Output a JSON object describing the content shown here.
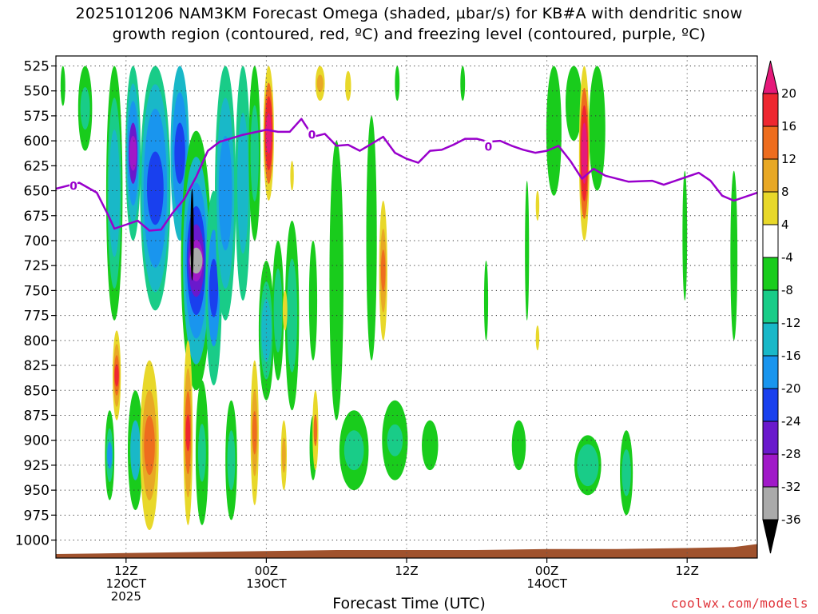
{
  "title_line1": "2025101206 NAM3KM Forecast Omega (shaded, µbar/s) for KB#A with dendritic snow",
  "title_line2": "growth region (contoured, red, ºC) and freezing level (contoured, purple, ºC)",
  "x_axis_title": "Forecast Time (UTC)",
  "credit": "coolwx.com/models",
  "chart_data": {
    "type": "heatmap",
    "title": "2025101206 NAM3KM Forecast Omega (shaded, µbar/s) for KB#A with dendritic snow growth region (contoured, red, ºC) and freezing level (contoured, purple, ºC)",
    "xlabel": "Forecast Time (UTC)",
    "ylabel": "",
    "y_ticks": [
      525,
      550,
      575,
      600,
      625,
      650,
      675,
      700,
      725,
      750,
      775,
      800,
      825,
      850,
      875,
      900,
      925,
      950,
      975,
      1000
    ],
    "y_inverted": true,
    "xlim_hours": [
      6,
      66
    ],
    "x_ticks": [
      {
        "hour": 12,
        "labels": [
          "12Z",
          "12OCT",
          "2025"
        ]
      },
      {
        "hour": 24,
        "labels": [
          "00Z",
          "13OCT"
        ]
      },
      {
        "hour": 36,
        "labels": [
          "12Z"
        ]
      },
      {
        "hour": 48,
        "labels": [
          "00Z",
          "14OCT"
        ]
      },
      {
        "hour": 60,
        "labels": [
          "12Z"
        ]
      }
    ],
    "grid": true,
    "colorbar": {
      "labels": [
        "20",
        "16",
        "12",
        "8",
        "4",
        "-4",
        "-8",
        "-12",
        "-16",
        "-20",
        "-24",
        "-28",
        "-32",
        "-36"
      ],
      "colors": [
        "#e5197a",
        "#ee2730",
        "#ee6d1e",
        "#e8a825",
        "#e8d82a",
        "#ffffff",
        "#19cc1c",
        "#19cc88",
        "#19b8c8",
        "#1995ee",
        "#1940ee",
        "#6a19cc",
        "#a019c8",
        "#aaaaaa",
        "#000000"
      ]
    },
    "freezing_level": {
      "color": "#9900cc",
      "contour_label": "0",
      "points": [
        [
          6,
          648
        ],
        [
          8,
          642
        ],
        [
          9.5,
          652
        ],
        [
          10.5,
          675
        ],
        [
          11,
          688
        ],
        [
          12,
          684
        ],
        [
          13,
          680
        ],
        [
          14,
          690
        ],
        [
          15,
          689
        ],
        [
          16,
          672
        ],
        [
          17,
          658
        ],
        [
          18,
          636
        ],
        [
          19,
          610
        ],
        [
          20,
          601
        ],
        [
          22,
          594
        ],
        [
          24,
          589
        ],
        [
          25,
          591
        ],
        [
          26,
          591
        ],
        [
          27,
          578
        ],
        [
          28,
          596
        ],
        [
          29,
          593
        ],
        [
          30,
          605
        ],
        [
          31,
          604
        ],
        [
          32,
          610
        ],
        [
          33,
          603
        ],
        [
          34,
          596
        ],
        [
          35,
          612
        ],
        [
          36,
          618
        ],
        [
          37,
          622
        ],
        [
          38,
          610
        ],
        [
          39,
          609
        ],
        [
          40,
          604
        ],
        [
          41,
          598
        ],
        [
          42,
          598
        ],
        [
          43,
          601
        ],
        [
          44,
          600
        ],
        [
          45,
          605
        ],
        [
          46,
          609
        ],
        [
          47,
          612
        ],
        [
          48,
          610
        ],
        [
          49,
          605
        ],
        [
          50,
          620
        ],
        [
          51,
          638
        ],
        [
          52,
          628
        ],
        [
          53,
          635
        ],
        [
          55,
          641
        ],
        [
          57,
          640
        ],
        [
          58,
          644
        ],
        [
          59,
          640
        ],
        [
          61,
          632
        ],
        [
          62,
          640
        ],
        [
          63,
          655
        ],
        [
          64,
          660
        ],
        [
          66,
          652
        ]
      ]
    },
    "terrain": {
      "color": "#a0522d",
      "points": [
        [
          6,
          1014
        ],
        [
          12,
          1013
        ],
        [
          18,
          1012
        ],
        [
          24,
          1011
        ],
        [
          30,
          1010
        ],
        [
          36,
          1010
        ],
        [
          42,
          1010
        ],
        [
          48,
          1009
        ],
        [
          54,
          1009
        ],
        [
          60,
          1008
        ],
        [
          64,
          1007
        ],
        [
          66,
          1004
        ]
      ]
    },
    "omega_features": [
      {
        "hour": 6.6,
        "p_top": 525,
        "p_bot": 565,
        "w": 0.4,
        "bands": [
          [
            "#19cc1c",
            1
          ]
        ]
      },
      {
        "hour": 8.5,
        "p_top": 525,
        "p_bot": 610,
        "w": 1.2,
        "bands": [
          [
            "#19cc1c",
            1
          ],
          [
            "#19cc88",
            0.5
          ]
        ]
      },
      {
        "hour": 11.0,
        "p_top": 525,
        "p_bot": 780,
        "w": 1.4,
        "bands": [
          [
            "#19cc1c",
            1
          ],
          [
            "#19cc88",
            0.75
          ],
          [
            "#19b8c8",
            0.5
          ]
        ]
      },
      {
        "hour": 12.6,
        "p_top": 525,
        "p_bot": 700,
        "w": 1.3,
        "bands": [
          [
            "#19cc88",
            1
          ],
          [
            "#19b8c8",
            0.8
          ],
          [
            "#1995ee",
            0.6
          ],
          [
            "#6a19cc",
            0.35
          ],
          [
            "#a019c8",
            0.2
          ]
        ]
      },
      {
        "hour": 14.5,
        "p_top": 525,
        "p_bot": 770,
        "w": 2.6,
        "bands": [
          [
            "#19cc88",
            1
          ],
          [
            "#19b8c8",
            0.85
          ],
          [
            "#1995ee",
            0.65
          ],
          [
            "#1940ee",
            0.3
          ]
        ]
      },
      {
        "hour": 16.6,
        "p_top": 525,
        "p_bot": 700,
        "w": 1.6,
        "bands": [
          [
            "#19b8c8",
            1
          ],
          [
            "#1995ee",
            0.7
          ],
          [
            "#1940ee",
            0.35
          ]
        ]
      },
      {
        "hour": 18.0,
        "p_top": 590,
        "p_bot": 850,
        "w": 2.6,
        "bands": [
          [
            "#19cc1c",
            1
          ],
          [
            "#19b8c8",
            0.8
          ],
          [
            "#1995ee",
            0.6
          ],
          [
            "#1940ee",
            0.42
          ],
          [
            "#6a19cc",
            0.28
          ],
          [
            "#a019c8",
            0.16
          ],
          [
            "#aaaaaa",
            0.1
          ]
        ]
      },
      {
        "hour": 17.65,
        "p_top": 648,
        "p_bot": 740,
        "w": 0.25,
        "bands": [
          [
            "#000000",
            1
          ]
        ]
      },
      {
        "hour": 19.5,
        "p_top": 650,
        "p_bot": 845,
        "w": 1.4,
        "bands": [
          [
            "#19cc88",
            1
          ],
          [
            "#1995ee",
            0.6
          ],
          [
            "#1940ee",
            0.3
          ]
        ]
      },
      {
        "hour": 20.5,
        "p_top": 525,
        "p_bot": 780,
        "w": 1.8,
        "bands": [
          [
            "#19cc88",
            1
          ],
          [
            "#19b8c8",
            0.75
          ],
          [
            "#1995ee",
            0.45
          ]
        ]
      },
      {
        "hour": 22.0,
        "p_top": 525,
        "p_bot": 760,
        "w": 1.3,
        "bands": [
          [
            "#19cc88",
            1
          ],
          [
            "#19b8c8",
            0.6
          ]
        ]
      },
      {
        "hour": 23.0,
        "p_top": 525,
        "p_bot": 700,
        "w": 1.0,
        "bands": [
          [
            "#19cc1c",
            1
          ],
          [
            "#19cc88",
            0.55
          ]
        ]
      },
      {
        "hour": 24.0,
        "p_top": 720,
        "p_bot": 860,
        "w": 1.3,
        "bands": [
          [
            "#19cc1c",
            1
          ],
          [
            "#19cc88",
            0.7
          ],
          [
            "#19b8c8",
            0.45
          ]
        ]
      },
      {
        "hour": 25.0,
        "p_top": 700,
        "p_bot": 840,
        "w": 1.0,
        "bands": [
          [
            "#19cc1c",
            1
          ],
          [
            "#19cc88",
            0.6
          ]
        ]
      },
      {
        "hour": 26.2,
        "p_top": 680,
        "p_bot": 870,
        "w": 1.2,
        "bands": [
          [
            "#19cc1c",
            1
          ],
          [
            "#19cc88",
            0.6
          ]
        ]
      },
      {
        "hour": 28.0,
        "p_top": 700,
        "p_bot": 820,
        "w": 0.7,
        "bands": [
          [
            "#19cc1c",
            1
          ]
        ]
      },
      {
        "hour": 30.0,
        "p_top": 600,
        "p_bot": 880,
        "w": 1.2,
        "bands": [
          [
            "#19cc1c",
            1
          ]
        ]
      },
      {
        "hour": 33.0,
        "p_top": 575,
        "p_bot": 820,
        "w": 0.9,
        "bands": [
          [
            "#19cc1c",
            1
          ]
        ]
      },
      {
        "hour": 35.2,
        "p_top": 525,
        "p_bot": 560,
        "w": 0.4,
        "bands": [
          [
            "#19cc1c",
            1
          ]
        ]
      },
      {
        "hour": 40.8,
        "p_top": 525,
        "p_bot": 560,
        "w": 0.4,
        "bands": [
          [
            "#19cc1c",
            1
          ]
        ]
      },
      {
        "hour": 42.8,
        "p_top": 720,
        "p_bot": 800,
        "w": 0.35,
        "bands": [
          [
            "#19cc1c",
            1
          ]
        ]
      },
      {
        "hour": 46.3,
        "p_top": 640,
        "p_bot": 780,
        "w": 0.35,
        "bands": [
          [
            "#19cc1c",
            1
          ]
        ]
      },
      {
        "hour": 48.6,
        "p_top": 525,
        "p_bot": 655,
        "w": 1.3,
        "bands": [
          [
            "#19cc1c",
            1
          ]
        ]
      },
      {
        "hour": 50.3,
        "p_top": 525,
        "p_bot": 600,
        "w": 1.4,
        "bands": [
          [
            "#19cc1c",
            1
          ]
        ]
      },
      {
        "hour": 52.3,
        "p_top": 525,
        "p_bot": 650,
        "w": 1.4,
        "bands": [
          [
            "#19cc1c",
            1
          ]
        ]
      },
      {
        "hour": 59.8,
        "p_top": 630,
        "p_bot": 760,
        "w": 0.4,
        "bands": [
          [
            "#19cc1c",
            1
          ]
        ]
      },
      {
        "hour": 64.0,
        "p_top": 630,
        "p_bot": 800,
        "w": 0.6,
        "bands": [
          [
            "#19cc1c",
            1
          ]
        ]
      },
      {
        "hour": 10.6,
        "p_top": 870,
        "p_bot": 960,
        "w": 0.8,
        "bands": [
          [
            "#19cc1c",
            1
          ],
          [
            "#19cc88",
            0.6
          ],
          [
            "#1995ee",
            0.3
          ]
        ]
      },
      {
        "hour": 12.8,
        "p_top": 850,
        "p_bot": 970,
        "w": 1.3,
        "bands": [
          [
            "#19cc1c",
            1
          ],
          [
            "#19b8c8",
            0.5
          ]
        ]
      },
      {
        "hour": 18.5,
        "p_top": 840,
        "p_bot": 985,
        "w": 1.1,
        "bands": [
          [
            "#19cc1c",
            1
          ],
          [
            "#19cc88",
            0.4
          ]
        ]
      },
      {
        "hour": 21.0,
        "p_top": 860,
        "p_bot": 980,
        "w": 1.0,
        "bands": [
          [
            "#19cc1c",
            1
          ],
          [
            "#19cc88",
            0.5
          ]
        ]
      },
      {
        "hour": 28.0,
        "p_top": 875,
        "p_bot": 940,
        "w": 0.6,
        "bands": [
          [
            "#19cc1c",
            1
          ]
        ]
      },
      {
        "hour": 31.5,
        "p_top": 870,
        "p_bot": 950,
        "w": 2.5,
        "bands": [
          [
            "#19cc1c",
            1
          ],
          [
            "#19cc88",
            0.5
          ]
        ]
      },
      {
        "hour": 35.0,
        "p_top": 860,
        "p_bot": 940,
        "w": 2.2,
        "bands": [
          [
            "#19cc1c",
            1
          ],
          [
            "#19cc88",
            0.4
          ]
        ]
      },
      {
        "hour": 38.0,
        "p_top": 880,
        "p_bot": 930,
        "w": 1.4,
        "bands": [
          [
            "#19cc1c",
            1
          ]
        ]
      },
      {
        "hour": 45.6,
        "p_top": 880,
        "p_bot": 930,
        "w": 1.2,
        "bands": [
          [
            "#19cc1c",
            1
          ]
        ]
      },
      {
        "hour": 51.5,
        "p_top": 895,
        "p_bot": 955,
        "w": 2.3,
        "bands": [
          [
            "#19cc1c",
            1
          ],
          [
            "#19cc88",
            0.7
          ]
        ]
      },
      {
        "hour": 54.8,
        "p_top": 890,
        "p_bot": 975,
        "w": 1.1,
        "bands": [
          [
            "#19cc1c",
            1
          ],
          [
            "#19cc88",
            0.55
          ]
        ]
      },
      {
        "hour": 11.2,
        "p_top": 790,
        "p_bot": 880,
        "w": 0.7,
        "bands": [
          [
            "#e8d82a",
            1
          ],
          [
            "#e8a825",
            0.7
          ],
          [
            "#ee6d1e",
            0.45
          ],
          [
            "#ee2730",
            0.25
          ]
        ]
      },
      {
        "hour": 14.0,
        "p_top": 820,
        "p_bot": 990,
        "w": 1.6,
        "bands": [
          [
            "#e8d82a",
            1
          ],
          [
            "#e8a825",
            0.65
          ],
          [
            "#ee6d1e",
            0.35
          ]
        ]
      },
      {
        "hour": 17.3,
        "p_top": 800,
        "p_bot": 985,
        "w": 0.8,
        "bands": [
          [
            "#e8d82a",
            1
          ],
          [
            "#e8a825",
            0.7
          ],
          [
            "#ee6d1e",
            0.45
          ],
          [
            "#ee2730",
            0.2
          ]
        ]
      },
      {
        "hour": 23.0,
        "p_top": 820,
        "p_bot": 965,
        "w": 0.7,
        "bands": [
          [
            "#e8d82a",
            1
          ],
          [
            "#e8a825",
            0.6
          ],
          [
            "#ee6d1e",
            0.3
          ]
        ]
      },
      {
        "hour": 25.5,
        "p_top": 880,
        "p_bot": 950,
        "w": 0.5,
        "bands": [
          [
            "#e8d82a",
            1
          ],
          [
            "#e8a825",
            0.5
          ]
        ]
      },
      {
        "hour": 28.2,
        "p_top": 850,
        "p_bot": 930,
        "w": 0.5,
        "bands": [
          [
            "#e8d82a",
            1
          ],
          [
            "#ee6d1e",
            0.4
          ]
        ]
      },
      {
        "hour": 25.6,
        "p_top": 750,
        "p_bot": 790,
        "w": 0.4,
        "bands": [
          [
            "#e8d82a",
            1
          ]
        ]
      },
      {
        "hour": 34.0,
        "p_top": 660,
        "p_bot": 800,
        "w": 0.7,
        "bands": [
          [
            "#e8d82a",
            1
          ],
          [
            "#e8a825",
            0.6
          ],
          [
            "#ee6d1e",
            0.3
          ]
        ]
      },
      {
        "hour": 28.6,
        "p_top": 525,
        "p_bot": 560,
        "w": 0.8,
        "bands": [
          [
            "#e8d82a",
            1
          ],
          [
            "#e8a825",
            0.5
          ]
        ]
      },
      {
        "hour": 31.0,
        "p_top": 530,
        "p_bot": 560,
        "w": 0.5,
        "bands": [
          [
            "#e8d82a",
            1
          ]
        ]
      },
      {
        "hour": 26.2,
        "p_top": 620,
        "p_bot": 650,
        "w": 0.3,
        "bands": [
          [
            "#e8d82a",
            1
          ]
        ]
      },
      {
        "hour": 47.2,
        "p_top": 650,
        "p_bot": 680,
        "w": 0.3,
        "bands": [
          [
            "#e8d82a",
            1
          ]
        ]
      },
      {
        "hour": 47.2,
        "p_top": 785,
        "p_bot": 810,
        "w": 0.3,
        "bands": [
          [
            "#e8d82a",
            1
          ]
        ]
      },
      {
        "hour": 24.2,
        "p_top": 525,
        "p_bot": 660,
        "w": 0.9,
        "bands": [
          [
            "#e8d82a",
            1
          ],
          [
            "#ee6d1e",
            0.75
          ],
          [
            "#ee2730",
            0.55
          ],
          [
            "#e5197a",
            0.3
          ]
        ]
      },
      {
        "hour": 51.2,
        "p_top": 525,
        "p_bot": 700,
        "w": 0.9,
        "bands": [
          [
            "#e8d82a",
            1
          ],
          [
            "#ee6d1e",
            0.75
          ],
          [
            "#ee2730",
            0.55
          ],
          [
            "#e5197a",
            0.35
          ]
        ]
      }
    ]
  }
}
